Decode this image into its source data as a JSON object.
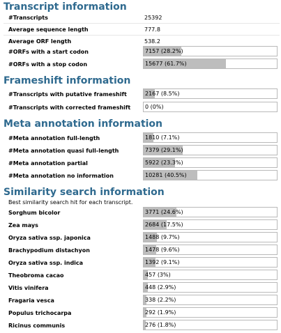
{
  "sections": {
    "transcript": {
      "title": "Transcript information",
      "stats": [
        {
          "label": "#Transcripts",
          "value": "25392"
        },
        {
          "label": "Average sequence length",
          "value": "777.8"
        },
        {
          "label": "Average ORF length",
          "value": "538.2"
        }
      ],
      "bars": [
        {
          "label": "#ORFs with a start codon",
          "value": "7157 (28.2%)",
          "fraction": 0.282
        },
        {
          "label": "#ORFs with a stop codon",
          "value": "15677 (61.7%)",
          "fraction": 0.617
        }
      ]
    },
    "frameshift": {
      "title": "Frameshift information",
      "bars": [
        {
          "label": "#Transcripts with putative frameshift",
          "value": "2167 (8.5%)",
          "fraction": 0.085
        },
        {
          "label": "#Transcripts with corrected frameshift",
          "value": "0 (0%)",
          "fraction": 0
        }
      ]
    },
    "meta": {
      "title": "Meta annotation information",
      "bars": [
        {
          "label": "#Meta annotation full-length",
          "value": "1810 (7.1%)",
          "fraction": 0.071
        },
        {
          "label": "#Meta annotation quasi full-length",
          "value": "7379 (29.1%)",
          "fraction": 0.291
        },
        {
          "label": "#Meta annotation partial",
          "value": "5922 (23.3%)",
          "fraction": 0.233
        },
        {
          "label": "#Meta annotation no information",
          "value": "10281 (40.5%)",
          "fraction": 0.405
        }
      ]
    },
    "similarity": {
      "title": "Similarity search information",
      "note": "Best similarity search hit for each transcript.",
      "bars": [
        {
          "label": "Sorghum bicolor",
          "value": "3771 (24.6%)",
          "fraction": 0.246
        },
        {
          "label": "Zea mays",
          "value": "2684 (17.5%)",
          "fraction": 0.175
        },
        {
          "label": "Oryza sativa ssp. japonica",
          "value": "1488 (9.7%)",
          "fraction": 0.097
        },
        {
          "label": "Brachypodium distachyon",
          "value": "1478 (9.6%)",
          "fraction": 0.096
        },
        {
          "label": "Oryza sativa ssp. indica",
          "value": "1392 (9.1%)",
          "fraction": 0.091
        },
        {
          "label": "Theobroma cacao",
          "value": "457 (3%)",
          "fraction": 0.03
        },
        {
          "label": "Vitis vinifera",
          "value": "448 (2.9%)",
          "fraction": 0.029
        },
        {
          "label": "Fragaria vesca",
          "value": "338 (2.2%)",
          "fraction": 0.022
        },
        {
          "label": "Populus trichocarpa",
          "value": "292 (1.9%)",
          "fraction": 0.019
        },
        {
          "label": "Ricinus communis",
          "value": "276 (1.8%)",
          "fraction": 0.018
        }
      ]
    }
  },
  "colors": {
    "title": "#2f6a8f",
    "bar_fill": "#bdbdbd",
    "bar_border": "#b9b9b9"
  }
}
